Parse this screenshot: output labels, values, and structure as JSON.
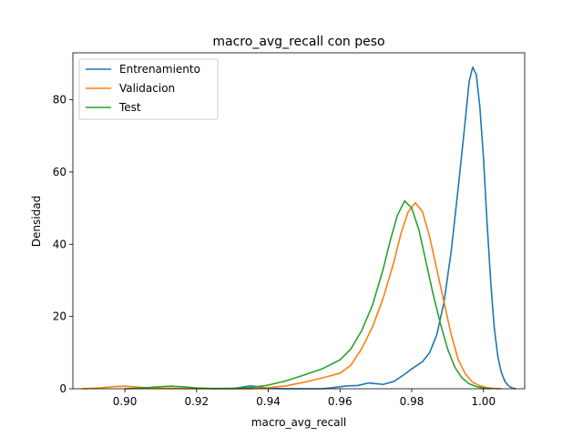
{
  "chart_data": {
    "type": "line",
    "title": "macro_avg_recall con peso",
    "xlabel": "macro_avg_recall",
    "ylabel": "Densidad",
    "xlim": [
      0.8855,
      1.0115
    ],
    "ylim": [
      0,
      93
    ],
    "xticks": [
      0.9,
      0.92,
      0.94,
      0.96,
      0.98,
      1.0
    ],
    "xtick_labels": [
      "0.90",
      "0.92",
      "0.94",
      "0.96",
      "0.98",
      "1.00"
    ],
    "yticks": [
      0,
      20,
      40,
      60,
      80
    ],
    "ytick_labels": [
      "0",
      "20",
      "40",
      "60",
      "80"
    ],
    "grid": false,
    "legend_position": "top-left",
    "series": [
      {
        "name": "Entrenamiento",
        "color": "#1f77b4",
        "points": [
          [
            0.93,
            0
          ],
          [
            0.933,
            0.5
          ],
          [
            0.935,
            0.8
          ],
          [
            0.937,
            0.6
          ],
          [
            0.94,
            0.1
          ],
          [
            0.945,
            0
          ],
          [
            0.955,
            0
          ],
          [
            0.958,
            0.3
          ],
          [
            0.962,
            0.8
          ],
          [
            0.965,
            0.9
          ],
          [
            0.968,
            1.6
          ],
          [
            0.97,
            1.4
          ],
          [
            0.972,
            1.2
          ],
          [
            0.975,
            2.0
          ],
          [
            0.978,
            4.0
          ],
          [
            0.98,
            5.5
          ],
          [
            0.983,
            7.5
          ],
          [
            0.985,
            10
          ],
          [
            0.987,
            15
          ],
          [
            0.989,
            24
          ],
          [
            0.991,
            38
          ],
          [
            0.993,
            56
          ],
          [
            0.995,
            75
          ],
          [
            0.996,
            85
          ],
          [
            0.997,
            89
          ],
          [
            0.998,
            87
          ],
          [
            0.999,
            78
          ],
          [
            1.0,
            64
          ],
          [
            1.001,
            46
          ],
          [
            1.002,
            30
          ],
          [
            1.003,
            17
          ],
          [
            1.004,
            9
          ],
          [
            1.005,
            4.5
          ],
          [
            1.006,
            2
          ],
          [
            1.007,
            0.8
          ],
          [
            1.008,
            0.2
          ],
          [
            1.009,
            0
          ]
        ]
      },
      {
        "name": "Validacion",
        "color": "#ff7f0e",
        "points": [
          [
            0.888,
            0
          ],
          [
            0.893,
            0.2
          ],
          [
            0.897,
            0.6
          ],
          [
            0.9,
            0.7
          ],
          [
            0.903,
            0.5
          ],
          [
            0.907,
            0.2
          ],
          [
            0.912,
            0.1
          ],
          [
            0.918,
            0.05
          ],
          [
            0.925,
            0
          ],
          [
            0.935,
            0
          ],
          [
            0.94,
            0.3
          ],
          [
            0.945,
            0.8
          ],
          [
            0.95,
            1.8
          ],
          [
            0.955,
            3.0
          ],
          [
            0.96,
            4.3
          ],
          [
            0.963,
            6.5
          ],
          [
            0.966,
            11
          ],
          [
            0.969,
            17
          ],
          [
            0.972,
            25
          ],
          [
            0.975,
            35
          ],
          [
            0.977,
            43
          ],
          [
            0.979,
            49
          ],
          [
            0.981,
            51.5
          ],
          [
            0.983,
            49
          ],
          [
            0.985,
            42
          ],
          [
            0.987,
            33
          ],
          [
            0.989,
            24
          ],
          [
            0.991,
            15
          ],
          [
            0.993,
            8
          ],
          [
            0.995,
            4
          ],
          [
            0.997,
            1.8
          ],
          [
            0.999,
            0.8
          ],
          [
            1.001,
            0.3
          ],
          [
            1.003,
            0.1
          ],
          [
            1.005,
            0
          ]
        ]
      },
      {
        "name": "Test",
        "color": "#2ca02c",
        "points": [
          [
            0.9,
            0
          ],
          [
            0.905,
            0.2
          ],
          [
            0.91,
            0.6
          ],
          [
            0.913,
            0.7
          ],
          [
            0.917,
            0.5
          ],
          [
            0.92,
            0.2
          ],
          [
            0.925,
            0.05
          ],
          [
            0.93,
            0.1
          ],
          [
            0.935,
            0.3
          ],
          [
            0.94,
            1.0
          ],
          [
            0.945,
            2.2
          ],
          [
            0.95,
            3.8
          ],
          [
            0.955,
            5.5
          ],
          [
            0.96,
            8
          ],
          [
            0.963,
            11
          ],
          [
            0.966,
            16
          ],
          [
            0.969,
            23
          ],
          [
            0.972,
            33
          ],
          [
            0.974,
            41
          ],
          [
            0.976,
            48
          ],
          [
            0.978,
            52
          ],
          [
            0.98,
            50
          ],
          [
            0.982,
            44
          ],
          [
            0.984,
            35
          ],
          [
            0.986,
            26
          ],
          [
            0.988,
            18
          ],
          [
            0.99,
            11
          ],
          [
            0.992,
            6
          ],
          [
            0.994,
            3
          ],
          [
            0.996,
            1.4
          ],
          [
            0.998,
            0.6
          ],
          [
            1.0,
            0.2
          ],
          [
            1.002,
            0
          ]
        ]
      }
    ]
  }
}
